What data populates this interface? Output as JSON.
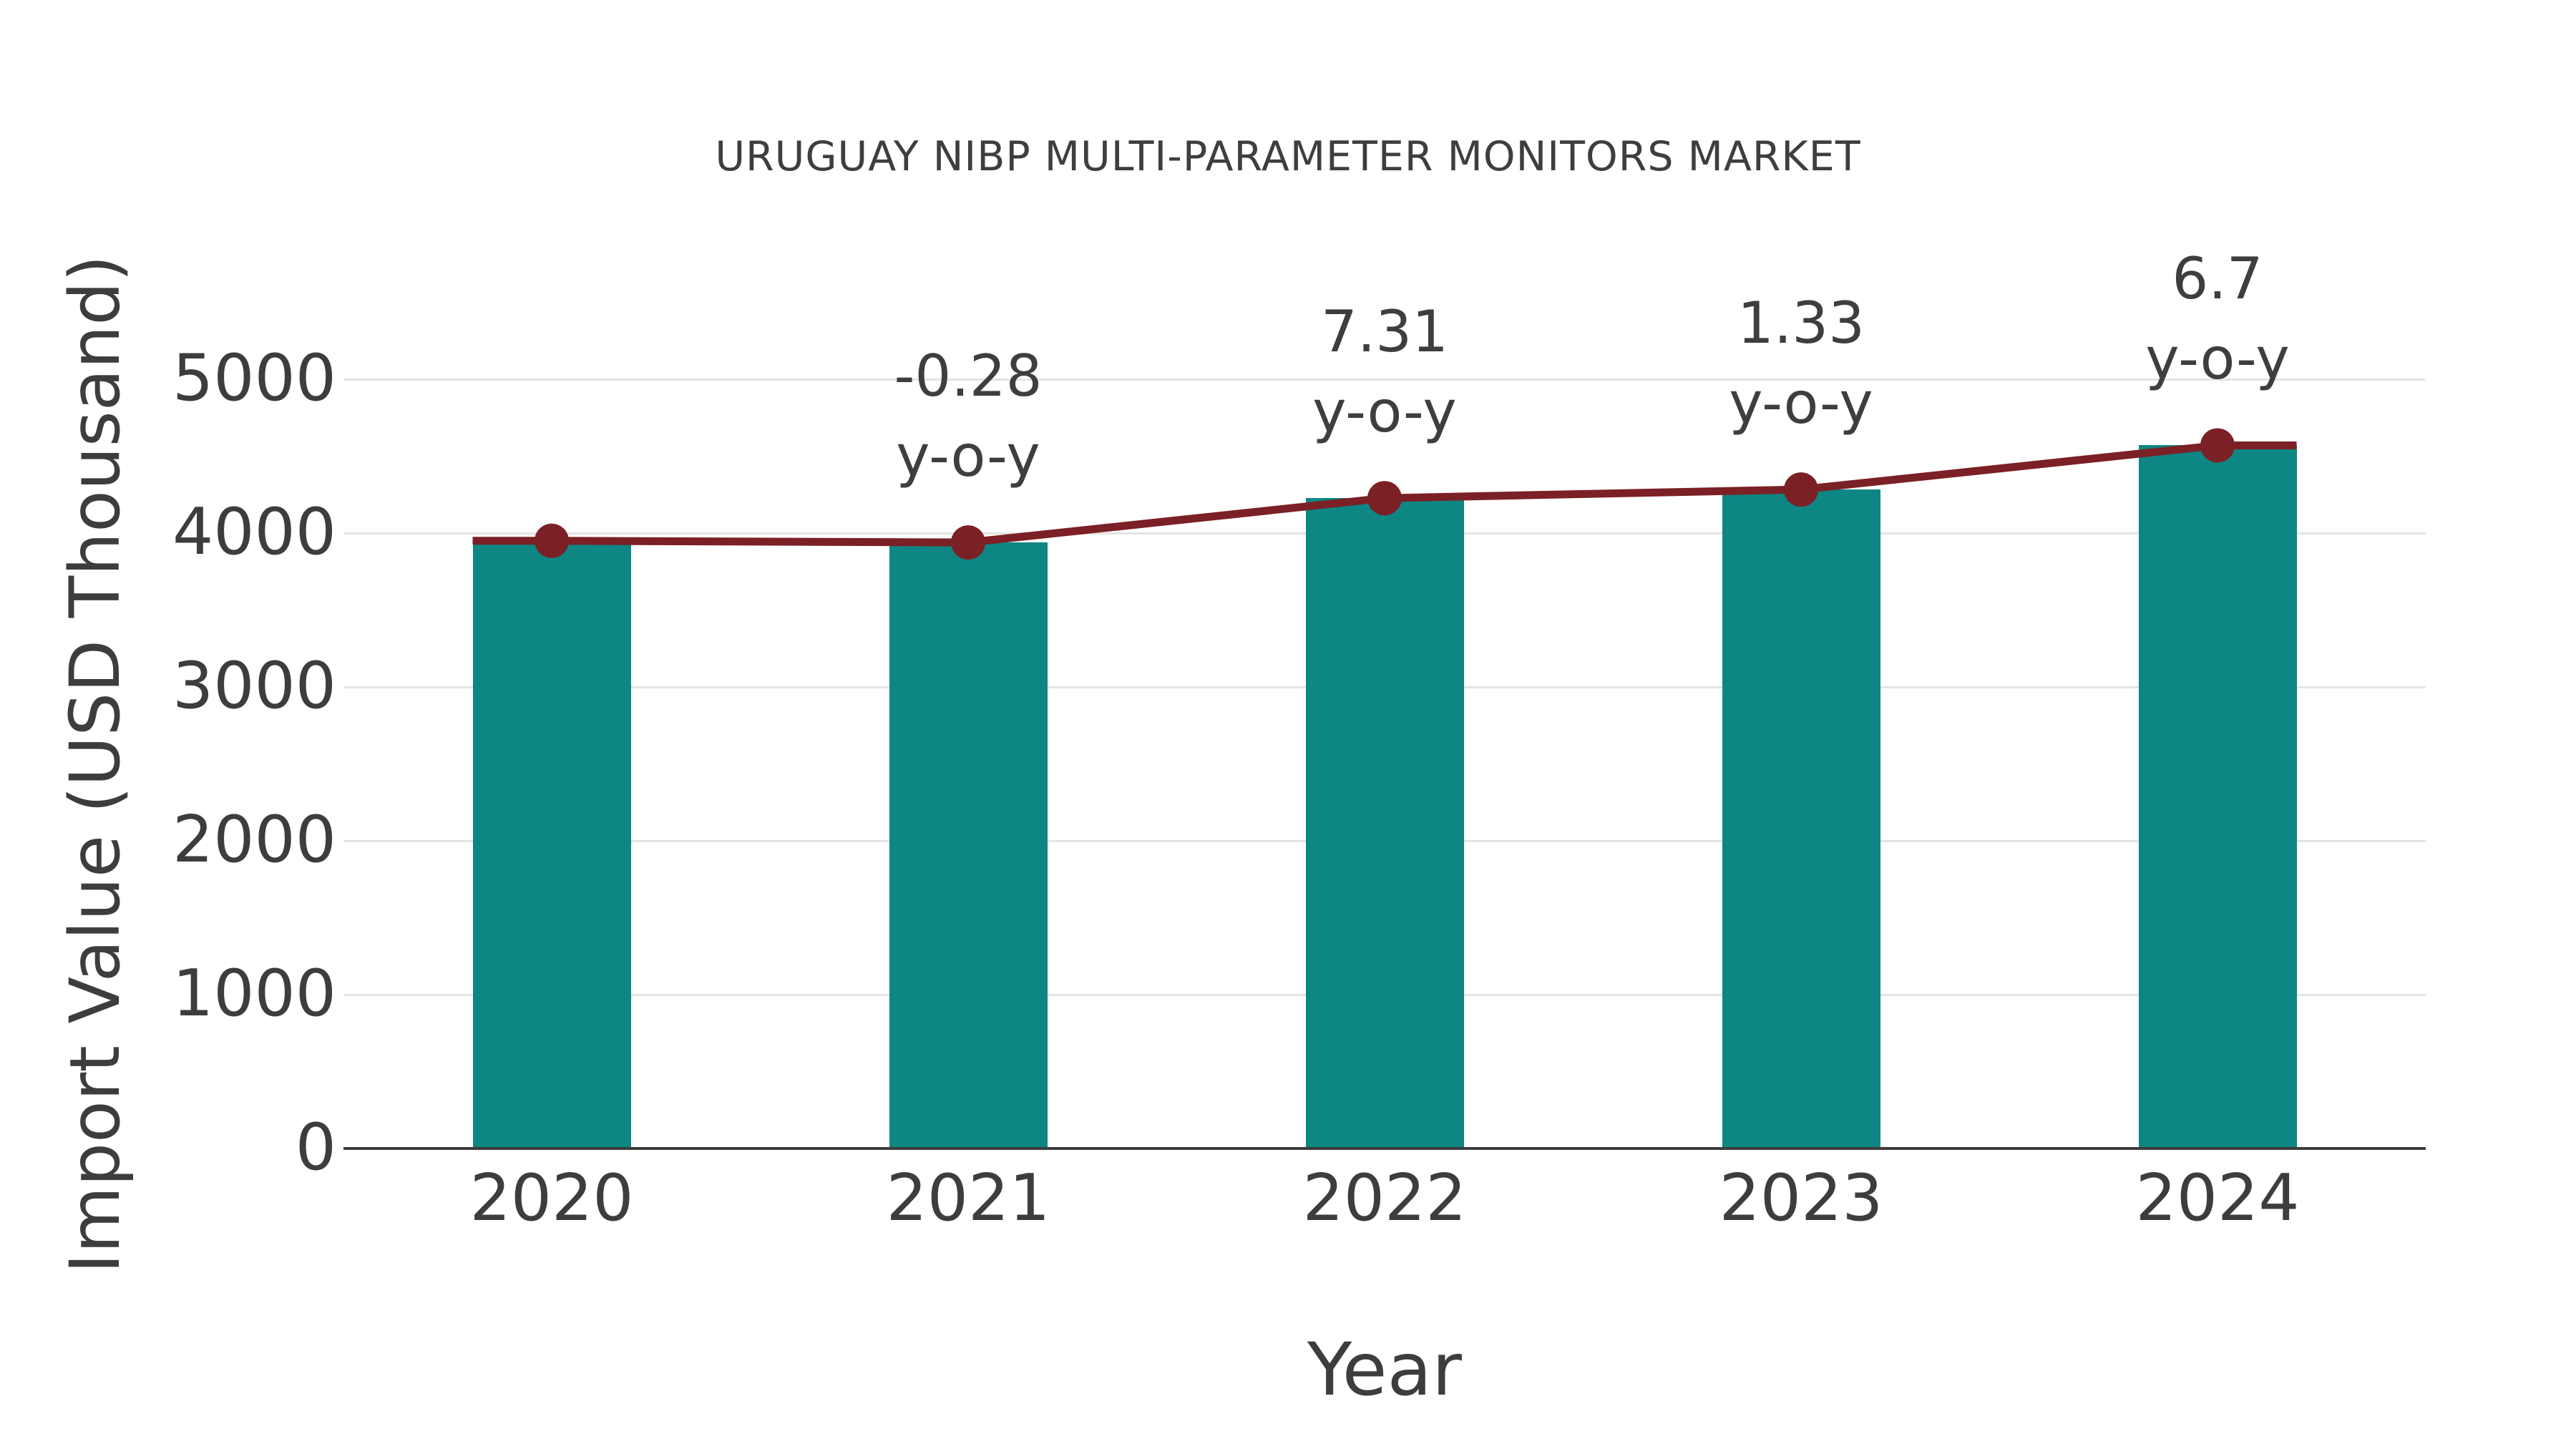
{
  "title": "URUGUAY NIBP MULTI-PARAMETER MONITORS MARKET",
  "xlabel": "Year",
  "ylabel": "Import Value (USD Thousand)",
  "colors": {
    "bar": "#0d8684",
    "line": "#7b2025",
    "marker": "#7b2025",
    "text": "#3e3e3e",
    "tick_text": "#3d3d3d",
    "grid": "#e4e4e4",
    "axis": "#3d3d3d",
    "background": "#ffffff"
  },
  "chart_data": {
    "type": "bar",
    "categories": [
      "2020",
      "2021",
      "2022",
      "2023",
      "2024"
    ],
    "series": [
      {
        "name": "Import Value (USD Thousand)",
        "type": "bar",
        "values": [
          3950,
          3939,
          4227,
          4283,
          4570
        ]
      },
      {
        "name": "trend",
        "type": "line",
        "values": [
          3950,
          3939,
          4227,
          4283,
          4570
        ]
      }
    ],
    "annotations": [
      {
        "category": "2021",
        "lines": [
          "-0.28",
          "y-o-y"
        ]
      },
      {
        "category": "2022",
        "lines": [
          "7.31",
          "y-o-y"
        ]
      },
      {
        "category": "2023",
        "lines": [
          "1.33",
          "y-o-y"
        ]
      },
      {
        "category": "2024",
        "lines": [
          "6.7",
          "y-o-y"
        ]
      }
    ],
    "yoy_percent": [
      null,
      -0.28,
      7.31,
      1.33,
      6.7
    ],
    "title": "URUGUAY NIBP MULTI-PARAMETER MONITORS MARKET",
    "xlabel": "Year",
    "ylabel": "Import Value (USD Thousand)",
    "yticks": [
      0,
      1000,
      2000,
      3000,
      4000,
      5000
    ],
    "ylim": [
      0,
      5000
    ],
    "grid": "horizontal",
    "legend": false
  }
}
